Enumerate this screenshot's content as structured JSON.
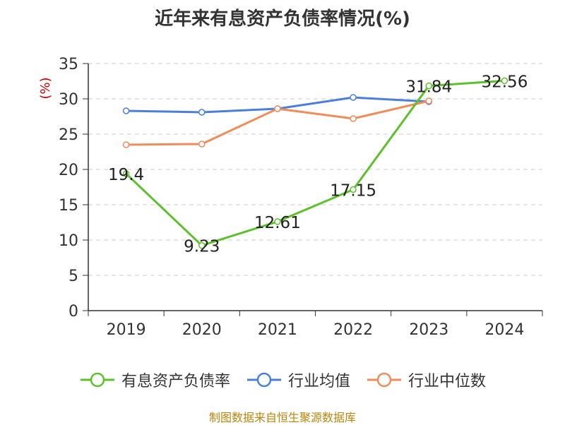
{
  "source": "制图数据来自恒生聚源数据库",
  "chart_data": {
    "type": "line",
    "title": "近年来有息资产负债率情况(%)",
    "ylabel": "(%)",
    "xlabel": "",
    "categories": [
      "2019",
      "2020",
      "2021",
      "2022",
      "2023",
      "2024"
    ],
    "ylim": [
      0,
      35
    ],
    "yticks": [
      "0",
      "5",
      "10",
      "15",
      "20",
      "25",
      "30",
      "35"
    ],
    "grid": "horizontal-dashed",
    "legend_position": "bottom",
    "series": [
      {
        "name": "有息资产负债率",
        "color": "#5cc12a",
        "values": [
          19.4,
          9.23,
          12.61,
          17.15,
          31.84,
          32.56
        ],
        "labels": [
          "19.4",
          "9.23",
          "12.61",
          "17.15",
          "31.84",
          "32.56"
        ]
      },
      {
        "name": "行业均值",
        "color": "#4a7fdc",
        "values": [
          28.3,
          28.1,
          28.6,
          30.2,
          29.6,
          null
        ]
      },
      {
        "name": "行业中位数",
        "color": "#f08c5a",
        "values": [
          23.5,
          23.6,
          28.6,
          27.2,
          29.7,
          null
        ]
      }
    ]
  }
}
